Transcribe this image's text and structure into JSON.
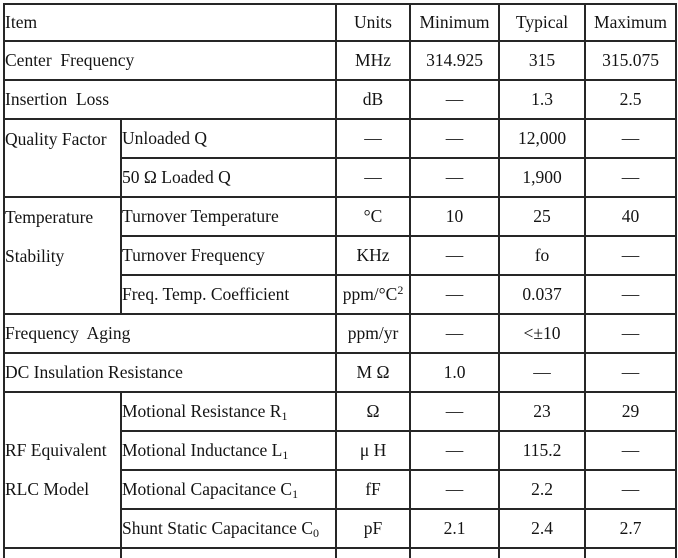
{
  "colors": {
    "border": "#262626",
    "text": "#141414",
    "background": "#ffffff"
  },
  "table": {
    "headers": {
      "item": "Item",
      "units": "Units",
      "minimum": "Minimum",
      "typical": "Typical",
      "maximum": "Maximum"
    },
    "rows": [
      {
        "kind": "item2",
        "item": {
          "text": "Center  Frequency"
        },
        "units": {
          "text": "MHz"
        },
        "min": "314.925",
        "typ": "315",
        "max": "315.075"
      },
      {
        "kind": "item2",
        "item": {
          "text": "Insertion  Loss"
        },
        "units": {
          "text": "dB"
        },
        "min": "—",
        "typ": "1.3",
        "max": "2.5"
      },
      {
        "kind": "sub",
        "group": {
          "lines": [
            "Quality Factor"
          ],
          "rowspan": 2,
          "valign": "top"
        },
        "item": {
          "text": "Unloaded Q"
        },
        "units": {
          "text": "—"
        },
        "min": "—",
        "typ": "12,000",
        "max": "—"
      },
      {
        "kind": "sub",
        "item": {
          "text": "50 Ω Loaded Q"
        },
        "units": {
          "text": "—"
        },
        "min": "—",
        "typ": "1,900",
        "max": "—"
      },
      {
        "kind": "sub",
        "group": {
          "lines": [
            "Temperature",
            "Stability"
          ],
          "rowspan": 3,
          "valign": "top"
        },
        "item": {
          "text": "Turnover Temperature"
        },
        "units": {
          "text": "°C"
        },
        "min": "10",
        "typ": "25",
        "max": "40"
      },
      {
        "kind": "sub",
        "item": {
          "text": "Turnover Frequency"
        },
        "units": {
          "text": "KHz"
        },
        "min": "—",
        "typ": "fo",
        "max": "—"
      },
      {
        "kind": "sub",
        "item": {
          "text": "Freq. Temp. Coefficient"
        },
        "units": {
          "text": "ppm/°C",
          "sup": "2"
        },
        "min": "—",
        "typ": "0.037",
        "max": "—"
      },
      {
        "kind": "item2",
        "item": {
          "text": "Frequency  Aging"
        },
        "units": {
          "text": "ppm/yr"
        },
        "min": "—",
        "typ": "<±10",
        "max": "—"
      },
      {
        "kind": "item2",
        "item": {
          "text": "DC Insulation Resistance"
        },
        "units": {
          "text": "M Ω"
        },
        "min": "1.0",
        "typ": "—",
        "max": "—"
      },
      {
        "kind": "sub",
        "group": {
          "lines": [
            "RF Equivalent",
            "RLC Model"
          ],
          "rowspan": 4,
          "valign": "middle"
        },
        "item": {
          "text": "Motional Resistance R",
          "sub": "1"
        },
        "units": {
          "text": "Ω"
        },
        "min": "—",
        "typ": "23",
        "max": "29"
      },
      {
        "kind": "sub",
        "item": {
          "text": "Motional Inductance L",
          "sub": "1"
        },
        "units": {
          "text": "μ H"
        },
        "min": "—",
        "typ": "115.2",
        "max": "—"
      },
      {
        "kind": "sub",
        "item": {
          "text": "Motional Capacitance C",
          "sub": "1"
        },
        "units": {
          "text": "fF"
        },
        "min": "—",
        "typ": "2.2",
        "max": "—"
      },
      {
        "kind": "sub",
        "item": {
          "text": "Shunt Static Capacitance C",
          "sub": "0"
        },
        "units": {
          "text": "pF"
        },
        "min": "2.1",
        "typ": "2.4",
        "max": "2.7"
      },
      {
        "kind": "partial"
      }
    ]
  }
}
